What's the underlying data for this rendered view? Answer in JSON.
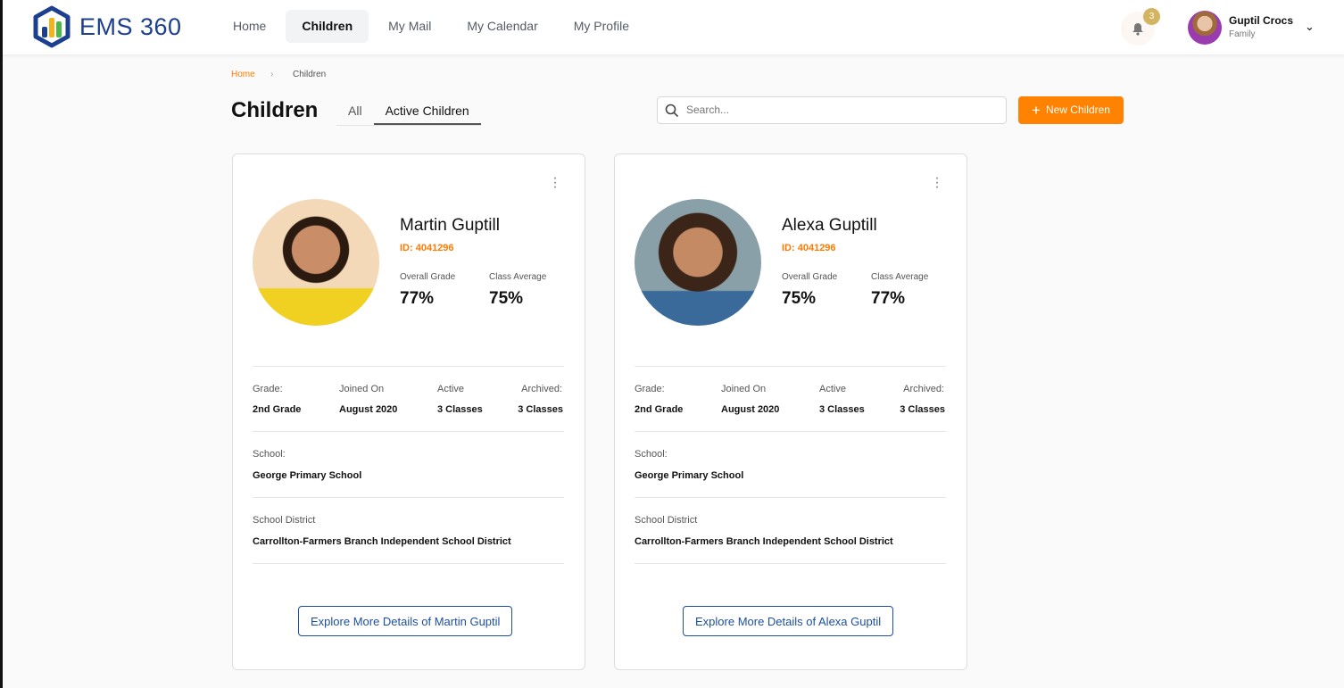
{
  "brand": {
    "name": "EMS 360"
  },
  "nav": [
    {
      "label": "Home"
    },
    {
      "label": "Children",
      "active": true
    },
    {
      "label": "My Mail"
    },
    {
      "label": "My Calendar"
    },
    {
      "label": "My Profile"
    }
  ],
  "notifications": {
    "count": "3",
    "icon": "bell-icon"
  },
  "user": {
    "name": "Guptil Crocs",
    "role": "Family"
  },
  "breadcrumb": {
    "home": "Home",
    "sep": "›",
    "current": "Children"
  },
  "page": {
    "title": "Children",
    "tabs": [
      {
        "label": "All"
      },
      {
        "label": "Active Children",
        "active": true
      }
    ],
    "search_placeholder": "Search...",
    "new_button": "New Children"
  },
  "labels": {
    "overall": "Overall Grade",
    "class_avg": "Class Average",
    "grade": "Grade:",
    "joined": "Joined On",
    "active": "Active",
    "archived": "Archived:",
    "school": "School:",
    "district": "School District"
  },
  "children": [
    {
      "name": "Martin Guptill",
      "id": "ID: 4041296",
      "overall": "77%",
      "class_avg": "75%",
      "grade": "2nd Grade",
      "joined": "August 2020",
      "active": "3 Classes",
      "archived": "3 Classes",
      "school": "George Primary School",
      "district": "Carrollton-Farmers Branch Independent School District",
      "explore": "Explore More Details of Martin Guptil"
    },
    {
      "name": "Alexa Guptill",
      "id": "ID: 4041296",
      "overall": "75%",
      "class_avg": "77%",
      "grade": "2nd Grade",
      "joined": "August 2020",
      "active": "3 Classes",
      "archived": "3 Classes",
      "school": "George Primary School",
      "district": "Carrollton-Farmers Branch Independent School District",
      "explore": "Explore More Details of Alexa Guptil"
    }
  ],
  "colors": {
    "accent": "#ff8200",
    "brand": "#1d3f8f",
    "link": "#1d4fa0"
  }
}
